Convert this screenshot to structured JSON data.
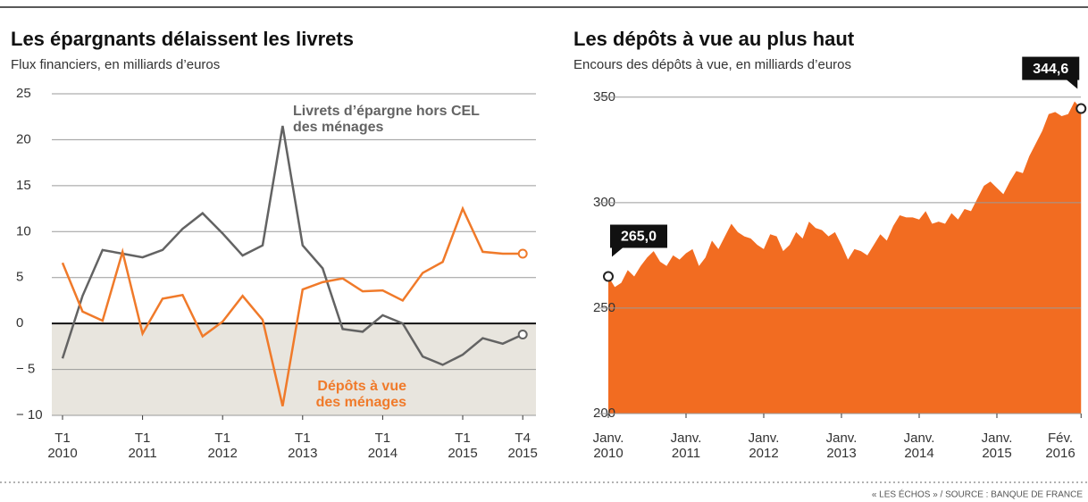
{
  "chart_data": [
    {
      "type": "line",
      "title": "Les épargnants délaissent les livrets",
      "subtitle": "Flux financiers, en milliards d’euros",
      "categories": [
        "T1 2010",
        null,
        null,
        null,
        "T1 2011",
        null,
        null,
        null,
        "T1 2012",
        null,
        null,
        null,
        "T1 2013",
        null,
        null,
        null,
        "T1 2014",
        null,
        null,
        null,
        "T1 2015",
        null,
        null,
        "T4 2015"
      ],
      "series": [
        {
          "name": "Livrets d’épargne hors CEL des ménages",
          "color": "#636363",
          "values": [
            -3.8,
            3.0,
            8.0,
            7.6,
            7.2,
            8.0,
            10.3,
            12.0,
            9.8,
            7.4,
            8.5,
            21.5,
            8.5,
            6.0,
            -0.6,
            -0.9,
            0.9,
            0,
            -3.6,
            -4.5,
            -3.4,
            -1.6,
            -2.2,
            -1.2
          ]
        },
        {
          "name": "Dépôts à vue des ménages",
          "color": "#f07a2a",
          "values": [
            6.6,
            1.3,
            0.3,
            7.8,
            -1.1,
            2.7,
            3.1,
            -1.4,
            0.2,
            3.0,
            0.4,
            -9.0,
            3.7,
            4.5,
            4.9,
            3.5,
            3.6,
            2.5,
            5.5,
            6.7,
            12.5,
            7.8,
            7.6,
            7.6
          ]
        }
      ],
      "ylim": [
        -10,
        25
      ],
      "yticks": [
        {
          "value": -10,
          "label": "− 10"
        },
        {
          "value": -5,
          "label": "− 5"
        },
        0,
        5,
        10,
        15,
        20,
        25
      ],
      "grid": true
    },
    {
      "type": "area",
      "title": "Les dépôts à vue au plus haut",
      "subtitle": "Encours des dépôts à vue, en milliards d’euros",
      "categories": [
        "Janv. 2010",
        null,
        null,
        null,
        null,
        null,
        null,
        null,
        null,
        null,
        null,
        null,
        "Janv. 2011",
        null,
        null,
        null,
        null,
        null,
        null,
        null,
        null,
        null,
        null,
        null,
        "Janv. 2012",
        null,
        null,
        null,
        null,
        null,
        null,
        null,
        null,
        null,
        null,
        null,
        "Janv. 2013",
        null,
        null,
        null,
        null,
        null,
        null,
        null,
        null,
        null,
        null,
        null,
        "Janv. 2014",
        null,
        null,
        null,
        null,
        null,
        null,
        null,
        null,
        null,
        null,
        null,
        "Janv. 2015",
        null,
        null,
        null,
        null,
        null,
        null,
        null,
        null,
        null,
        null,
        null,
        null,
        "Fév. 2016"
      ],
      "color": "#f26c21",
      "values": [
        265,
        260,
        262,
        268,
        265,
        270,
        274,
        277,
        272,
        270,
        275,
        273,
        276,
        278,
        270,
        274,
        282,
        278,
        284,
        290,
        286,
        284,
        283,
        280,
        278,
        285,
        284,
        277,
        280,
        286,
        283,
        291,
        288,
        287,
        284,
        286,
        280,
        273,
        278,
        277,
        275,
        280,
        285,
        282,
        289,
        294,
        293,
        293,
        292,
        296,
        290,
        291,
        290,
        295,
        292,
        297,
        296,
        302,
        308,
        310,
        307,
        304,
        310,
        315,
        314,
        322,
        328,
        334,
        342,
        343,
        341,
        342,
        348,
        344.6
      ],
      "value_labels": [
        "265,0",
        null,
        null,
        null,
        null,
        null,
        null,
        null,
        null,
        null,
        null,
        null,
        null,
        null,
        null,
        null,
        null,
        null,
        null,
        null,
        null,
        null,
        null,
        null,
        null,
        null,
        null,
        null,
        null,
        null,
        null,
        null,
        null,
        null,
        null,
        null,
        null,
        null,
        null,
        null,
        null,
        null,
        null,
        null,
        null,
        null,
        null,
        null,
        null,
        null,
        null,
        null,
        null,
        null,
        null,
        null,
        null,
        null,
        null,
        null,
        null,
        null,
        null,
        null,
        null,
        null,
        null,
        null,
        null,
        null,
        null,
        null,
        null,
        "344,6"
      ],
      "ylim": [
        200,
        355
      ],
      "yticks": [
        200,
        250,
        300,
        350
      ],
      "grid": true
    }
  ],
  "source": "« LES ÉCHOS » / SOURCE : BANQUE DE FRANCE"
}
